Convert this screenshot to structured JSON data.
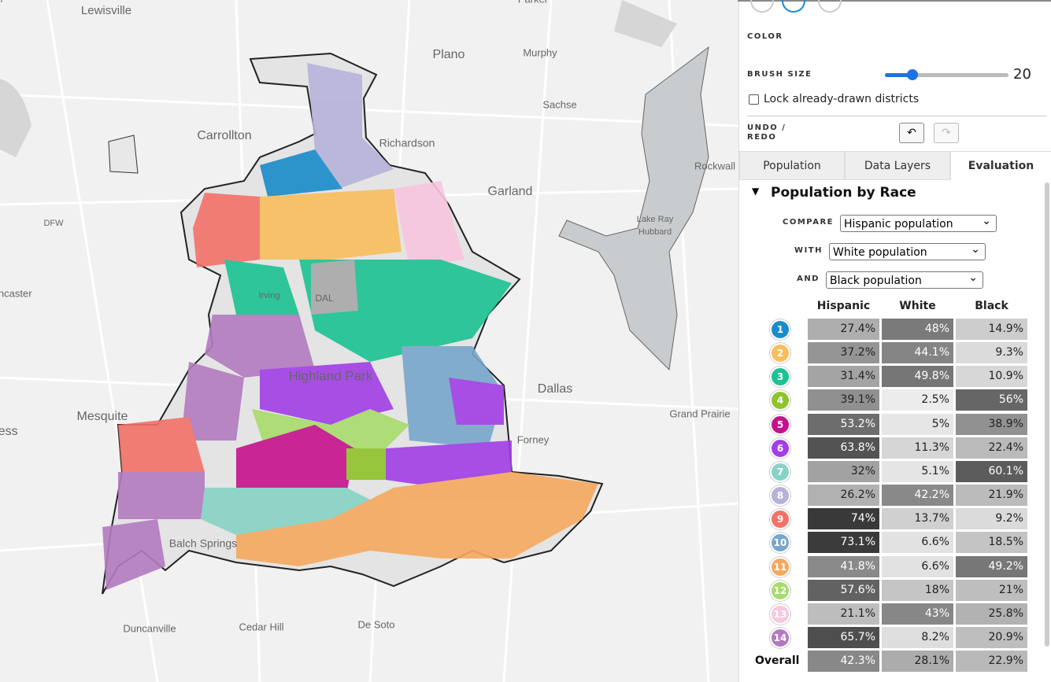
{
  "map": {
    "labels": [
      "Lewisville",
      "Plano",
      "Murphy",
      "Parker",
      "Sachse",
      "Carrollton",
      "Richardson",
      "Garland",
      "Rockwall",
      "Lake Ray",
      "Hubbard",
      "DFW",
      "Irving",
      "DAL",
      "Highland Park",
      "Dallas",
      "Mesquite",
      "Grand Prairie",
      "Forney",
      "Balch Springs",
      "Duncanville",
      "Cedar Hill",
      "De Soto",
      "Lancaster",
      "uless",
      "n"
    ]
  },
  "panel": {
    "color_label": "COLOR",
    "palette": [
      "#1a8cc9",
      "#f9be5c",
      "#1bc293",
      "#8fc32b",
      "#c4128c",
      "#a13ee6",
      "#88d3c6",
      "#b6b3d9",
      "#f37168",
      "#78a6cc",
      "#f6a95e",
      "#a9dc6c",
      "#f7c6df",
      "#b27bbf"
    ],
    "brush_label": "BRUSH SIZE",
    "brush_value": "20",
    "lock_label": "Lock already-drawn districts",
    "undo_label": [
      "UNDO /",
      "REDO"
    ],
    "tabs": [
      "Population",
      "Data Layers",
      "Evaluation"
    ],
    "section_title": "Population by Race",
    "compare": [
      {
        "label": "COMPARE",
        "select": "Hispanic population"
      },
      {
        "label": "WITH",
        "select": "White population"
      },
      {
        "label": "AND",
        "select": "Black population"
      }
    ],
    "table": {
      "headers": [
        "Hispanic",
        "White",
        "Black"
      ],
      "rows": [
        {
          "id": "1",
          "cells": [
            "27.4%",
            "48%",
            "14.9%"
          ]
        },
        {
          "id": "2",
          "cells": [
            "37.2%",
            "44.1%",
            "9.3%"
          ]
        },
        {
          "id": "3",
          "cells": [
            "31.4%",
            "49.8%",
            "10.9%"
          ]
        },
        {
          "id": "4",
          "cells": [
            "39.1%",
            "2.5%",
            "56%"
          ]
        },
        {
          "id": "5",
          "cells": [
            "53.2%",
            "5%",
            "38.9%"
          ]
        },
        {
          "id": "6",
          "cells": [
            "63.8%",
            "11.3%",
            "22.4%"
          ]
        },
        {
          "id": "7",
          "cells": [
            "32%",
            "5.1%",
            "60.1%"
          ]
        },
        {
          "id": "8",
          "cells": [
            "26.2%",
            "42.2%",
            "21.9%"
          ]
        },
        {
          "id": "9",
          "cells": [
            "74%",
            "13.7%",
            "9.2%"
          ]
        },
        {
          "id": "10",
          "cells": [
            "73.1%",
            "6.6%",
            "18.5%"
          ]
        },
        {
          "id": "11",
          "cells": [
            "41.8%",
            "6.6%",
            "49.2%"
          ]
        },
        {
          "id": "12",
          "cells": [
            "57.6%",
            "18%",
            "21%"
          ]
        },
        {
          "id": "13",
          "cells": [
            "21.1%",
            "43%",
            "25.8%"
          ]
        },
        {
          "id": "14",
          "cells": [
            "65.7%",
            "8.2%",
            "20.9%"
          ]
        }
      ],
      "overall_label": "Overall",
      "overall": [
        "42.3%",
        "28.1%",
        "22.9%"
      ]
    }
  }
}
